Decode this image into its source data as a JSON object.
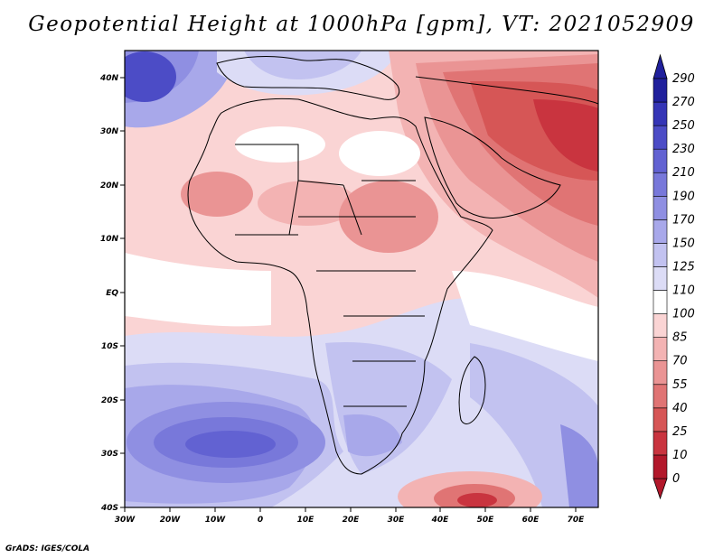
{
  "title": "Geopotential Height at 1000hPa [gpm], VT: 2021052909",
  "footer": "GrADS: IGES/COLA",
  "colors": {
    "scale": [
      "#b2182b",
      "#c9343f",
      "#d65656",
      "#e07474",
      "#ea9494",
      "#f3b3b3",
      "#fad4d4",
      "#ffffff",
      "#dcdcf6",
      "#c2c2f0",
      "#a8a8ea",
      "#8f8fe2",
      "#7878da",
      "#6262d2",
      "#4c4cc6",
      "#3535b6",
      "#20209c"
    ],
    "coast": "#000000"
  },
  "map": {
    "lon_range": [
      -30,
      75
    ],
    "lat_range": [
      -40,
      45
    ],
    "lon_ticks": [
      "30W",
      "20W",
      "10W",
      "0",
      "10E",
      "20E",
      "30E",
      "40E",
      "50E",
      "60E",
      "70E"
    ],
    "lat_ticks": [
      "40S",
      "30S",
      "20S",
      "10S",
      "EQ",
      "10N",
      "20N",
      "30N",
      "40N"
    ]
  },
  "colorbar": {
    "labels": [
      "0",
      "10",
      "25",
      "40",
      "55",
      "70",
      "85",
      "100",
      "110",
      "125",
      "150",
      "170",
      "190",
      "210",
      "230",
      "250",
      "270",
      "290"
    ]
  }
}
